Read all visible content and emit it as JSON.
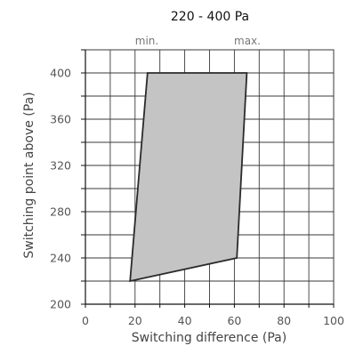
{
  "chart_data": {
    "type": "area",
    "title": "220 - 400 Pa",
    "xlabel": "Switching difference (Pa)",
    "ylabel": "Switching point above (Pa)",
    "xlim": [
      0,
      100
    ],
    "ylim": [
      200,
      420
    ],
    "x_ticks": [
      "0",
      "20",
      "40",
      "60",
      "80",
      "100"
    ],
    "y_ticks": [
      "200",
      "240",
      "280",
      "320",
      "360",
      "400"
    ],
    "min_label": "min.",
    "max_label": "max.",
    "grid": true,
    "colors": {
      "fill": "#c4c4c4",
      "outline": "#2b2b2b",
      "grid": "#3a3a3a"
    },
    "region": {
      "name": "",
      "points": [
        {
          "x": 18,
          "y": 220
        },
        {
          "x": 25,
          "y": 400
        },
        {
          "x": 65,
          "y": 400
        },
        {
          "x": 61,
          "y": 240
        }
      ]
    }
  }
}
